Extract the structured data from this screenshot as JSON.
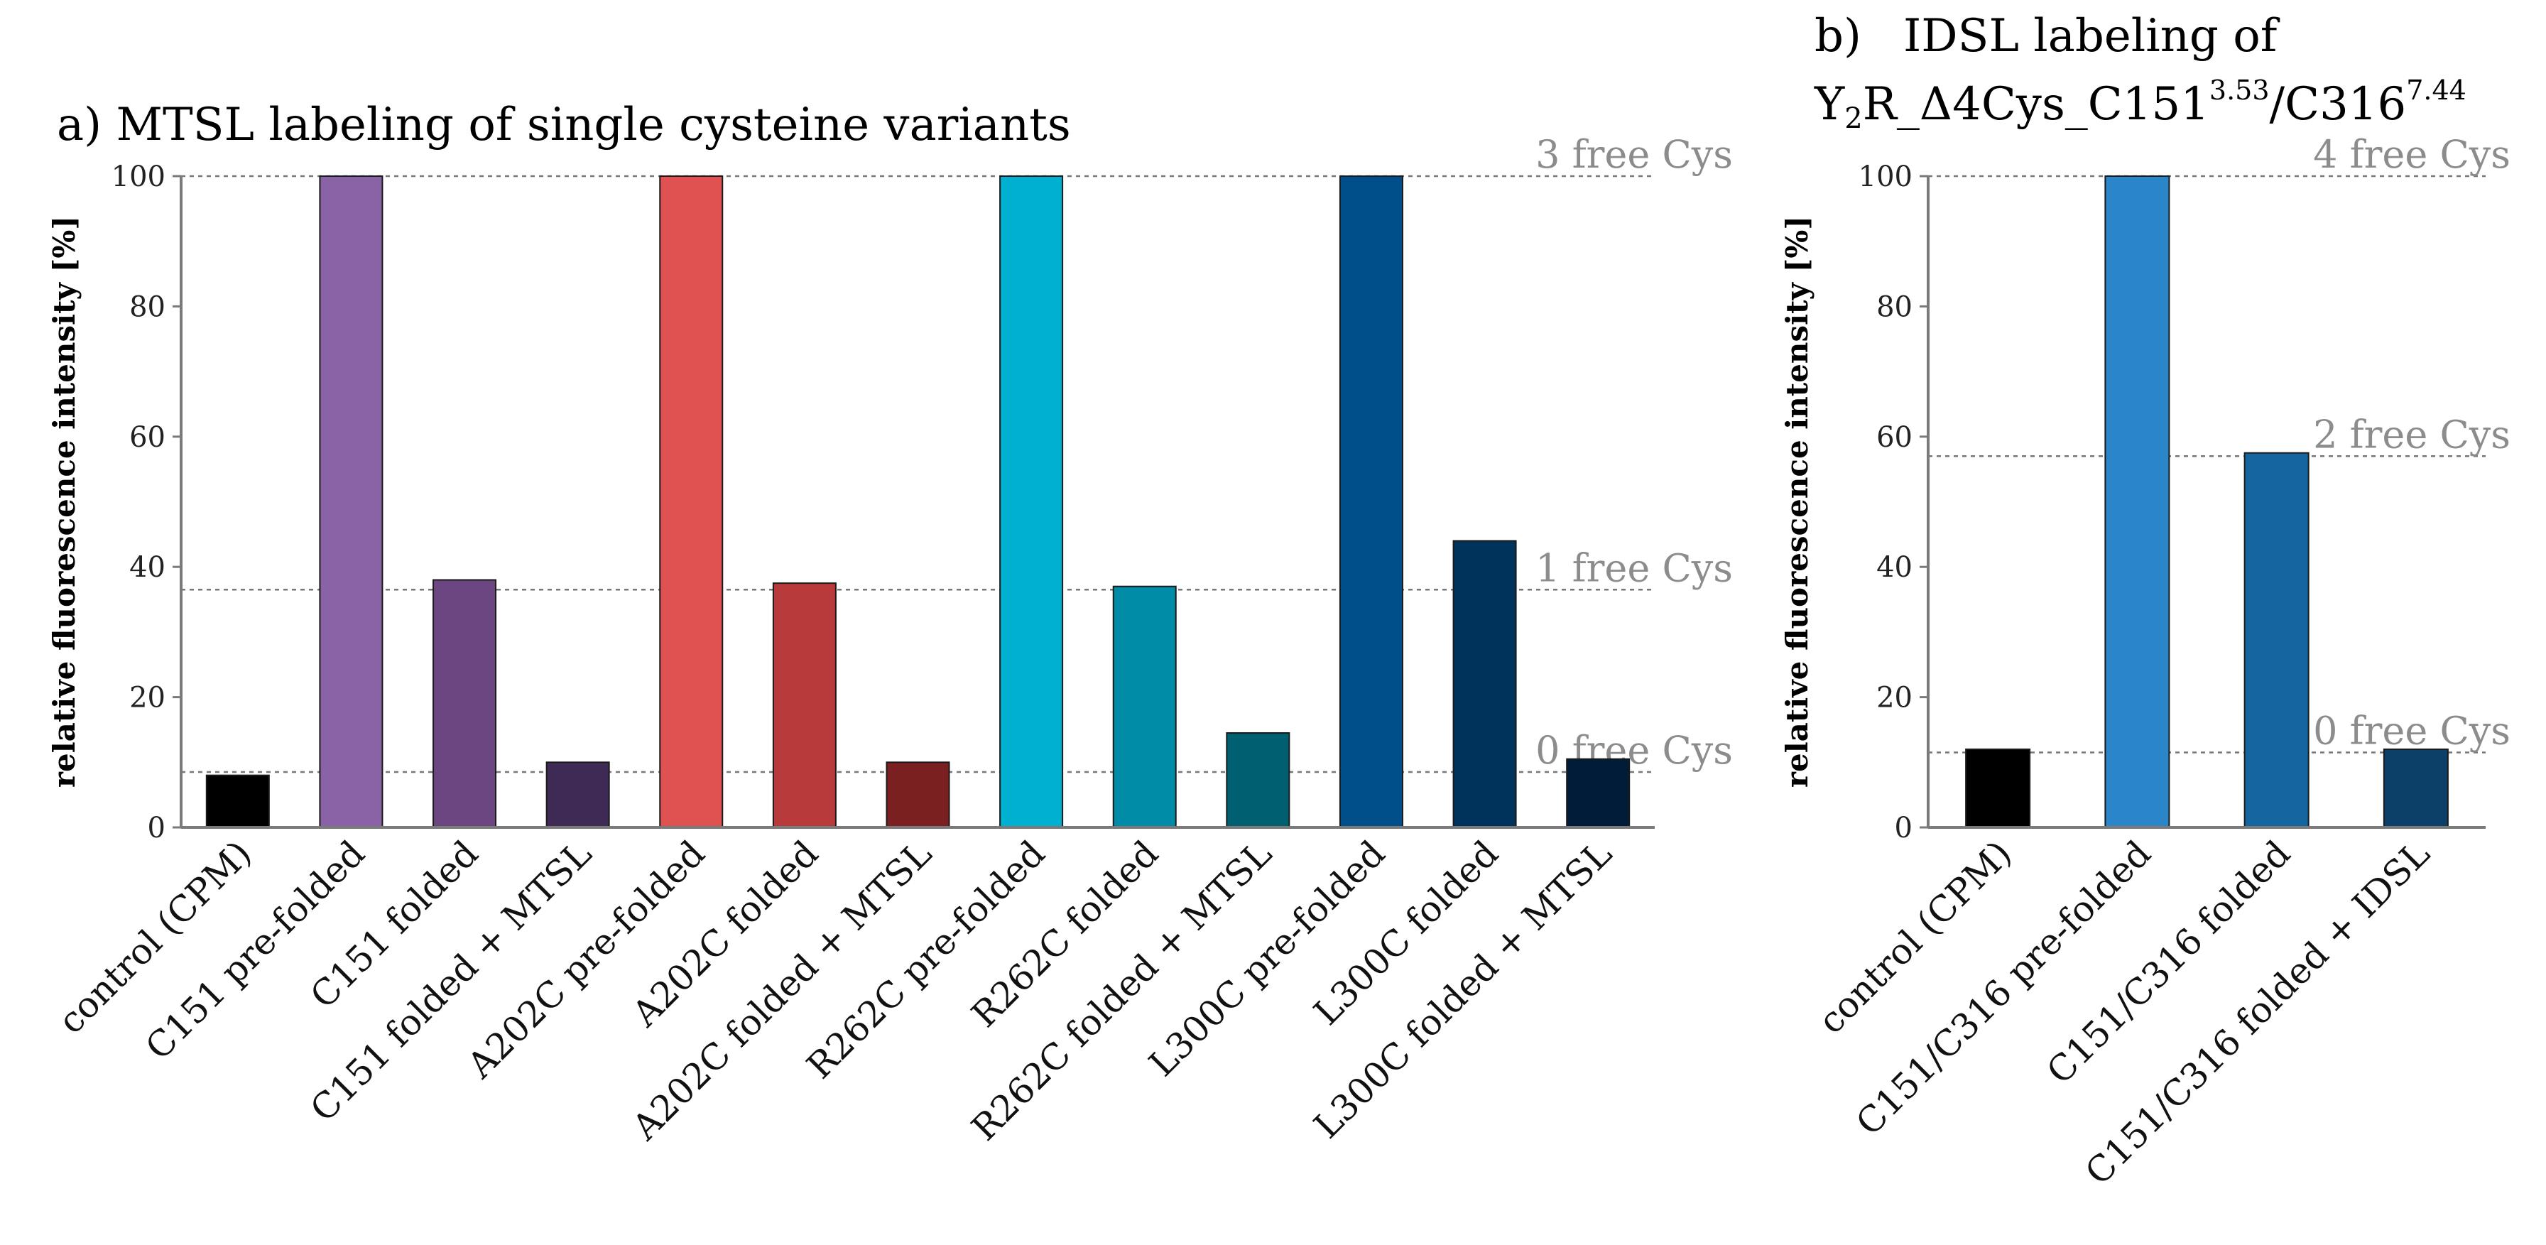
{
  "chart_data": [
    {
      "type": "bar",
      "title": "a) MTSL labeling of single cysteine variants",
      "xlabel": "",
      "ylabel": "relative fluorescence intensity [%]",
      "ylim": [
        0,
        100
      ],
      "yticks": [
        0,
        20,
        40,
        60,
        80,
        100
      ],
      "grid": false,
      "categories": [
        "control (CPM)",
        "C151 pre-folded",
        "C151 folded",
        "C151 folded + MTSL",
        "A202C pre-folded",
        "A202C folded",
        "A202C folded + MTSL",
        "R262C pre-folded",
        "R262C folded",
        "R262C folded + MTSL",
        "L300C pre-folded",
        "L300C folded",
        "L300C folded + MTSL"
      ],
      "values": [
        8,
        100,
        38,
        10,
        100,
        37.5,
        10,
        100,
        37,
        14.5,
        100,
        44,
        10.5
      ],
      "colors": [
        "#000000",
        "#8a63a6",
        "#6b4680",
        "#3f2a55",
        "#e05252",
        "#b83a3a",
        "#7a2020",
        "#00b0d0",
        "#008ca6",
        "#005f70",
        "#004f8a",
        "#00335c",
        "#001c38"
      ],
      "reference_lines": [
        {
          "value": 100,
          "label": "3 free Cys"
        },
        {
          "value": 36.5,
          "label": "1 free Cys"
        },
        {
          "value": 8.5,
          "label": "0 free Cys"
        }
      ]
    },
    {
      "type": "bar",
      "title_prefix": "b)",
      "title_line1": "IDSL labeling of",
      "title_line2": {
        "y": "Y",
        "sub2": "2",
        "mid": "R_Δ4Cys_C151",
        "sup1": "3.53",
        "slash": "/C316",
        "sup2": "7.44"
      },
      "xlabel": "",
      "ylabel": "relative fluorescence intensity [%]",
      "ylim": [
        0,
        100
      ],
      "yticks": [
        0,
        20,
        40,
        60,
        80,
        100
      ],
      "grid": false,
      "categories": [
        "control (CPM)",
        "C151/C316 pre-folded",
        "C151/C316 folded",
        "C151/C316 folded + IDSL"
      ],
      "values": [
        12,
        100,
        57.5,
        12
      ],
      "colors": [
        "#000000",
        "#2a86c8",
        "#1565a0",
        "#0d4068"
      ],
      "reference_lines": [
        {
          "value": 100,
          "label": "4 free Cys"
        },
        {
          "value": 57,
          "label": "2 free Cys"
        },
        {
          "value": 11.5,
          "label": "0 free Cys"
        }
      ]
    }
  ]
}
